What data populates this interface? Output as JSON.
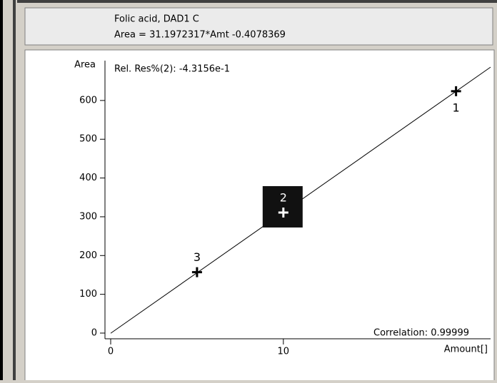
{
  "chart_data": {
    "type": "scatter",
    "header": [
      "Folic acid, DAD1 C",
      "Area = 31.1972317*Amt -0.4078369"
    ],
    "ylabel": "Area",
    "xlabel": "Amount[]",
    "annotations": [
      "Rel. Res%(2): -4.3156e-1",
      "Correlation: 0.99999"
    ],
    "labels": [
      "1",
      "2",
      "3"
    ],
    "x": [
      20,
      10,
      5
    ],
    "y": [
      624,
      311,
      157
    ],
    "selected": [
      false,
      true,
      false
    ],
    "fit": {
      "x": [
        0,
        22
      ],
      "y": [
        -0.41,
        686
      ]
    },
    "xlim": [
      0,
      22
    ],
    "ylim": [
      0,
      712
    ],
    "xticks": [
      0,
      10
    ],
    "yticks": [
      0,
      100,
      200,
      300,
      400,
      500,
      600
    ]
  }
}
